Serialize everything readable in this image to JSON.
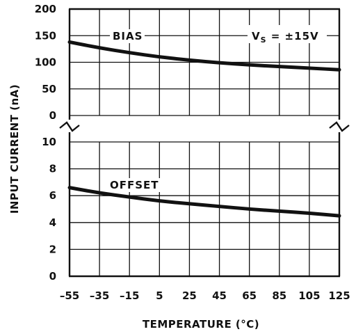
{
  "chart_data": {
    "type": "line",
    "title": "",
    "xlabel": "TEMPERATURE (°C)",
    "ylabel": "INPUT CURRENT (nA)",
    "x_ticks": [
      "-55",
      "-35",
      "-15",
      "5",
      "25",
      "45",
      "65",
      "85",
      "105",
      "125"
    ],
    "xlim": [
      -55,
      125
    ],
    "grid": true,
    "upper_panel": {
      "y_ticks": [
        "200",
        "150",
        "100",
        "50",
        "0"
      ],
      "ylim": [
        0,
        200
      ],
      "series_name": "BIAS",
      "x": [
        -55,
        -35,
        -15,
        5,
        25,
        45,
        65,
        85,
        105,
        125
      ],
      "y": [
        138,
        127,
        118,
        110,
        104,
        99,
        95,
        92,
        89,
        86
      ]
    },
    "lower_panel": {
      "y_ticks": [
        "10",
        "8",
        "6",
        "4",
        "2",
        "0"
      ],
      "ylim": [
        0,
        10
      ],
      "series_name": "OFFSET",
      "x": [
        -55,
        -35,
        -15,
        5,
        25,
        45,
        65,
        85,
        105,
        125
      ],
      "y": [
        6.6,
        6.2,
        5.9,
        5.6,
        5.4,
        5.2,
        5.0,
        4.85,
        4.7,
        4.5
      ]
    },
    "annotation": {
      "main": "V",
      "subscript": "S",
      "rest": " = ±15V"
    }
  }
}
